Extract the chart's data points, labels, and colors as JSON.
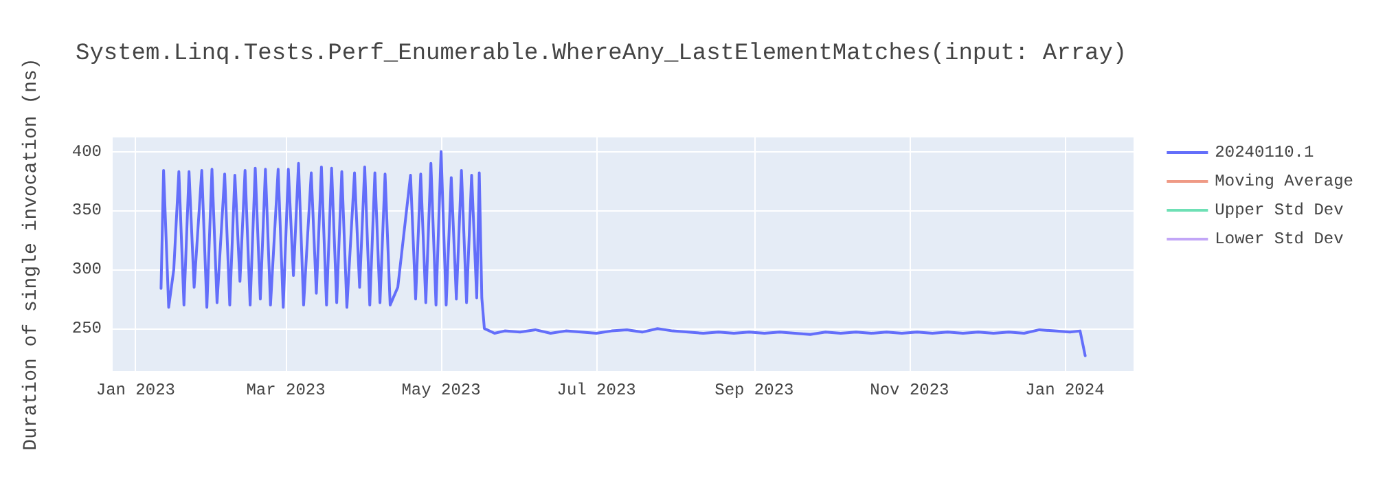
{
  "chart_data": {
    "type": "line",
    "title": "System.Linq.Tests.Perf_Enumerable.WhereAny_LastElementMatches(input: Array)",
    "ylabel": "Duration of single invocation (ns)",
    "x": [
      "2023-01-11",
      "2023-01-12",
      "2023-01-14",
      "2023-01-16",
      "2023-01-18",
      "2023-01-20",
      "2023-01-22",
      "2023-01-24",
      "2023-01-27",
      "2023-01-29",
      "2023-01-31",
      "2023-02-02",
      "2023-02-05",
      "2023-02-07",
      "2023-02-09",
      "2023-02-11",
      "2023-02-13",
      "2023-02-15",
      "2023-02-17",
      "2023-02-19",
      "2023-02-21",
      "2023-02-23",
      "2023-02-26",
      "2023-02-28",
      "2023-03-02",
      "2023-03-04",
      "2023-03-06",
      "2023-03-08",
      "2023-03-11",
      "2023-03-13",
      "2023-03-15",
      "2023-03-17",
      "2023-03-19",
      "2023-03-21",
      "2023-03-23",
      "2023-03-25",
      "2023-03-28",
      "2023-03-30",
      "2023-04-01",
      "2023-04-03",
      "2023-04-05",
      "2023-04-07",
      "2023-04-09",
      "2023-04-11",
      "2023-04-14",
      "2023-04-19",
      "2023-04-21",
      "2023-04-23",
      "2023-04-25",
      "2023-04-27",
      "2023-04-29",
      "2023-05-01",
      "2023-05-03",
      "2023-05-05",
      "2023-05-07",
      "2023-05-09",
      "2023-05-11",
      "2023-05-13",
      "2023-05-15",
      "2023-05-16",
      "2023-05-17",
      "2023-05-18",
      "2023-05-22",
      "2023-05-26",
      "2023-06-01",
      "2023-06-07",
      "2023-06-13",
      "2023-06-19",
      "2023-06-25",
      "2023-07-01",
      "2023-07-07",
      "2023-07-13",
      "2023-07-19",
      "2023-07-25",
      "2023-07-31",
      "2023-08-06",
      "2023-08-12",
      "2023-08-18",
      "2023-08-24",
      "2023-08-30",
      "2023-09-05",
      "2023-09-11",
      "2023-09-17",
      "2023-09-23",
      "2023-09-29",
      "2023-10-05",
      "2023-10-11",
      "2023-10-17",
      "2023-10-23",
      "2023-10-29",
      "2023-11-04",
      "2023-11-10",
      "2023-11-16",
      "2023-11-22",
      "2023-11-28",
      "2023-12-04",
      "2023-12-10",
      "2023-12-16",
      "2023-12-22",
      "2023-12-28",
      "2024-01-03",
      "2024-01-07",
      "2024-01-09"
    ],
    "series": [
      {
        "name": "20240110.1",
        "color": "#636efa",
        "values": [
          284,
          384,
          268,
          300,
          383,
          270,
          383,
          285,
          384,
          268,
          385,
          272,
          381,
          270,
          380,
          290,
          384,
          270,
          386,
          275,
          385,
          270,
          385,
          268,
          385,
          295,
          390,
          270,
          382,
          280,
          387,
          270,
          386,
          272,
          383,
          268,
          382,
          285,
          387,
          270,
          382,
          272,
          381,
          270,
          285,
          380,
          275,
          381,
          272,
          390,
          270,
          400,
          270,
          378,
          275,
          384,
          272,
          380,
          276,
          382,
          276,
          250,
          246,
          248,
          247,
          249,
          246,
          248,
          247,
          246,
          248,
          249,
          247,
          250,
          248,
          247,
          246,
          247,
          246,
          247,
          246,
          247,
          246,
          245,
          247,
          246,
          247,
          246,
          247,
          246,
          247,
          246,
          247,
          246,
          247,
          246,
          247,
          246,
          249,
          248,
          247,
          248,
          227
        ]
      },
      {
        "name": "Moving Average",
        "color": "#ef9a85",
        "values": [
          null,
          null,
          null,
          null,
          null,
          null,
          null,
          null,
          null,
          null,
          null,
          null,
          null,
          null,
          null,
          null,
          null,
          null,
          null,
          null,
          null,
          null,
          null,
          null,
          null,
          null,
          null,
          null,
          null,
          null,
          null,
          null,
          null,
          null,
          null,
          null,
          null,
          null,
          null,
          null,
          null,
          null,
          null,
          null,
          null,
          null,
          null,
          null,
          null,
          null,
          null,
          null,
          null,
          null,
          null,
          null,
          null,
          null,
          null,
          null,
          null,
          null,
          null,
          null,
          null,
          null,
          null,
          null,
          null,
          null,
          null,
          null,
          null,
          null,
          null,
          null,
          null,
          null,
          null,
          null,
          null,
          null,
          null,
          null,
          null,
          null,
          null,
          null,
          null,
          null,
          null,
          null,
          null,
          null,
          null,
          null,
          null,
          null,
          null,
          null,
          null,
          null,
          null
        ]
      },
      {
        "name": "Upper Std Dev",
        "color": "#6ee0b5",
        "values": [
          null,
          null,
          null,
          null,
          null,
          null,
          null,
          null,
          null,
          null,
          null,
          null,
          null,
          null,
          null,
          null,
          null,
          null,
          null,
          null,
          null,
          null,
          null,
          null,
          null,
          null,
          null,
          null,
          null,
          null,
          null,
          null,
          null,
          null,
          null,
          null,
          null,
          null,
          null,
          null,
          null,
          null,
          null,
          null,
          null,
          null,
          null,
          null,
          null,
          null,
          null,
          null,
          null,
          null,
          null,
          null,
          null,
          null,
          null,
          null,
          null,
          null,
          null,
          null,
          null,
          null,
          null,
          null,
          null,
          null,
          null,
          null,
          null,
          null,
          null,
          null,
          null,
          null,
          null,
          null,
          null,
          null,
          null,
          null,
          null,
          null,
          null,
          null,
          null,
          null,
          null,
          null,
          null,
          null,
          null,
          null,
          null,
          null,
          null,
          null,
          null,
          null,
          null
        ]
      },
      {
        "name": "Lower Std Dev",
        "color": "#c2a6f7",
        "values": [
          null,
          null,
          null,
          null,
          null,
          null,
          null,
          null,
          null,
          null,
          null,
          null,
          null,
          null,
          null,
          null,
          null,
          null,
          null,
          null,
          null,
          null,
          null,
          null,
          null,
          null,
          null,
          null,
          null,
          null,
          null,
          null,
          null,
          null,
          null,
          null,
          null,
          null,
          null,
          null,
          null,
          null,
          null,
          null,
          null,
          null,
          null,
          null,
          null,
          null,
          null,
          null,
          null,
          null,
          null,
          null,
          null,
          null,
          null,
          null,
          null,
          null,
          null,
          null,
          null,
          null,
          null,
          null,
          null,
          null,
          null,
          null,
          null,
          null,
          null,
          null,
          null,
          null,
          null,
          null,
          null,
          null,
          null,
          null,
          null,
          null,
          null,
          null,
          null,
          null,
          null,
          null,
          null,
          null,
          null,
          null,
          null,
          null,
          null,
          null,
          null,
          null,
          null
        ]
      }
    ],
    "xlim": [
      "2022-12-23",
      "2024-01-28"
    ],
    "xticks": [
      {
        "value": "2023-01-01",
        "label": "Jan 2023"
      },
      {
        "value": "2023-03-01",
        "label": "Mar 2023"
      },
      {
        "value": "2023-05-01",
        "label": "May 2023"
      },
      {
        "value": "2023-07-01",
        "label": "Jul 2023"
      },
      {
        "value": "2023-09-01",
        "label": "Sep 2023"
      },
      {
        "value": "2023-11-01",
        "label": "Nov 2023"
      },
      {
        "value": "2024-01-01",
        "label": "Jan 2024"
      }
    ],
    "ylim": [
      214,
      412
    ],
    "yticks": [
      250,
      300,
      350,
      400
    ],
    "grid": true,
    "legend": "top right",
    "marker": "none",
    "line_style": "solid"
  }
}
